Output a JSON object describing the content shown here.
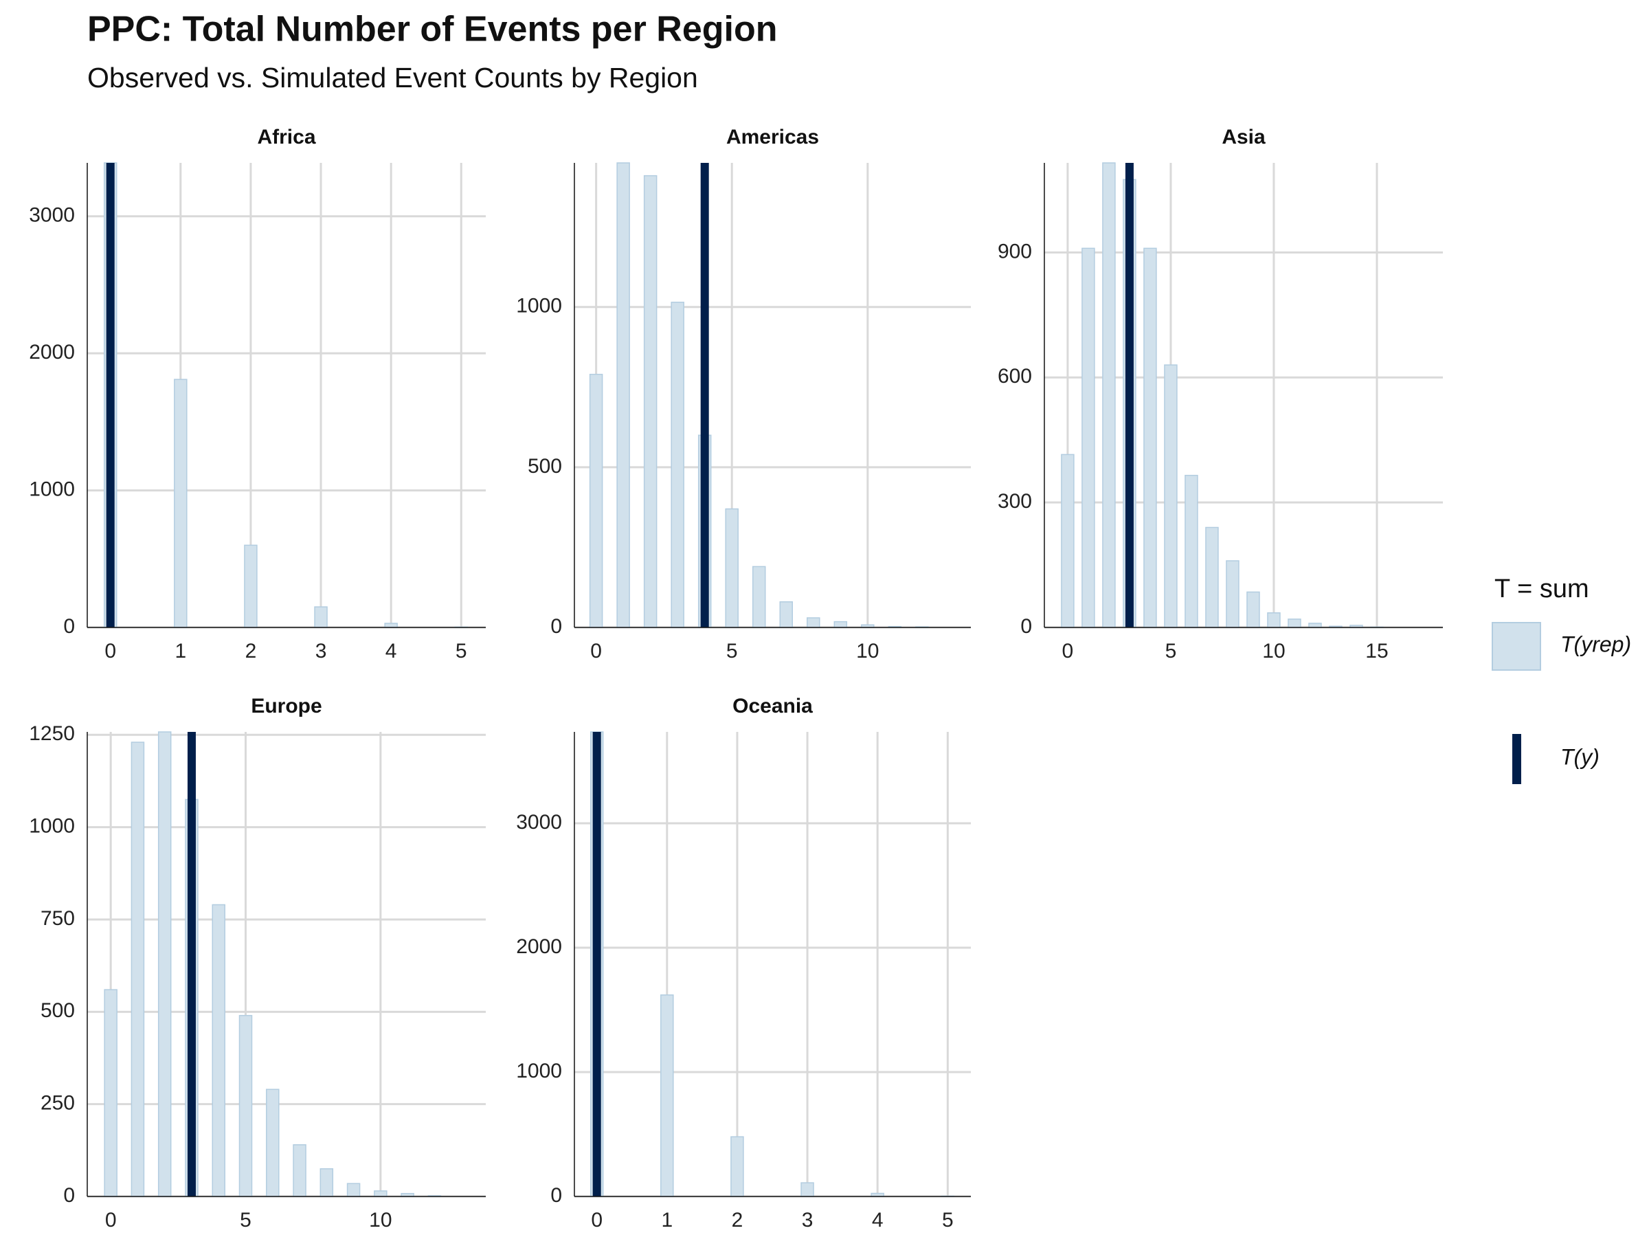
{
  "title": "PPC: Total Number of Events per Region",
  "subtitle": "Observed vs. Simulated Event Counts by Region",
  "legend": {
    "title": "T = sum",
    "entries": [
      {
        "name": "T(yrep)",
        "fill": "#d1e1ec",
        "stroke": "#b3cde0"
      },
      {
        "name": "T(y)",
        "fill": "#011f4b"
      }
    ]
  },
  "chart_data": [
    {
      "type": "bar",
      "title": "Africa",
      "x": [
        0,
        1,
        2,
        3,
        4,
        5
      ],
      "values": [
        3390,
        1810,
        600,
        150,
        30,
        3
      ],
      "observed": 0,
      "xlim": [
        -0.33,
        5.35
      ],
      "ylim": [
        0,
        3390
      ],
      "xticks": [
        0,
        1,
        2,
        3,
        4,
        5
      ],
      "yticks": [
        0,
        1000,
        2000,
        3000
      ],
      "grid": true
    },
    {
      "type": "bar",
      "title": "Americas",
      "x": [
        0,
        1,
        2,
        3,
        4,
        5,
        6,
        7,
        8,
        9,
        10,
        11,
        12
      ],
      "values": [
        790,
        1450,
        1410,
        1015,
        600,
        370,
        190,
        80,
        30,
        18,
        8,
        3,
        2
      ],
      "observed": 4,
      "xlim": [
        -0.8,
        13.8
      ],
      "ylim": [
        0,
        1450
      ],
      "xticks": [
        0,
        5,
        10
      ],
      "yticks": [
        0,
        500,
        1000
      ],
      "grid": true
    },
    {
      "type": "bar",
      "title": "Asia",
      "x": [
        0,
        1,
        2,
        3,
        4,
        5,
        6,
        7,
        8,
        9,
        10,
        11,
        12,
        13,
        14,
        15
      ],
      "values": [
        415,
        910,
        1115,
        1075,
        910,
        630,
        365,
        240,
        160,
        85,
        35,
        20,
        10,
        3,
        5,
        1
      ],
      "observed": 3,
      "xlim": [
        -1.13,
        18.2
      ],
      "ylim": [
        0,
        1115
      ],
      "xticks": [
        0,
        5,
        10,
        15
      ],
      "yticks": [
        0,
        300,
        600,
        900
      ],
      "grid": true
    },
    {
      "type": "bar",
      "title": "Europe",
      "x": [
        0,
        1,
        2,
        3,
        4,
        5,
        6,
        7,
        8,
        9,
        10,
        11,
        12
      ],
      "values": [
        560,
        1230,
        1258,
        1075,
        790,
        490,
        290,
        140,
        75,
        35,
        15,
        8,
        2
      ],
      "observed": 3,
      "xlim": [
        -0.87,
        13.9
      ],
      "ylim": [
        0,
        1258
      ],
      "xticks": [
        0,
        5,
        10
      ],
      "yticks": [
        0,
        250,
        500,
        750,
        1000,
        1250
      ],
      "grid": true
    },
    {
      "type": "bar",
      "title": "Oceania",
      "x": [
        0,
        1,
        2,
        3,
        4,
        5
      ],
      "values": [
        3735,
        1620,
        480,
        110,
        25,
        3
      ],
      "observed": 0,
      "xlim": [
        -0.32,
        5.33
      ],
      "ylim": [
        0,
        3735
      ],
      "xticks": [
        0,
        1,
        2,
        3,
        4,
        5
      ],
      "yticks": [
        0,
        1000,
        2000,
        3000
      ],
      "grid": true
    }
  ]
}
